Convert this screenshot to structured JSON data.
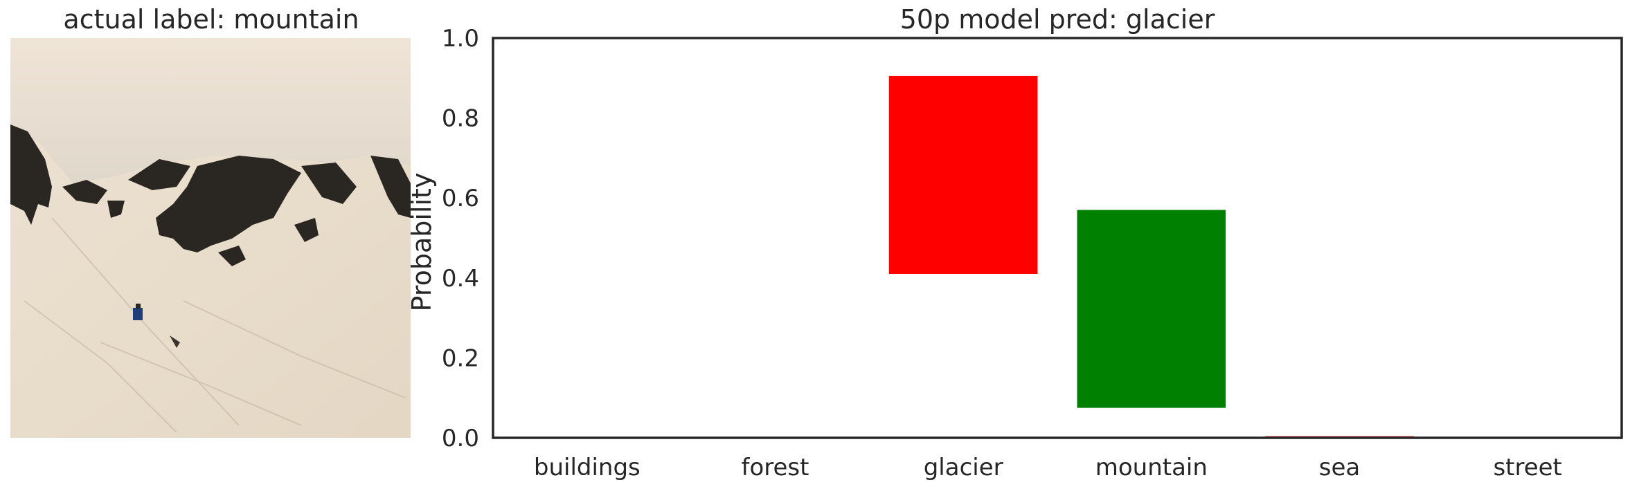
{
  "left_panel": {
    "title": "actual label: mountain"
  },
  "chart_data": {
    "type": "bar",
    "title": "50p model pred: glacier",
    "xlabel": "",
    "ylabel": "Probability",
    "categories": [
      "buildings",
      "forest",
      "glacier",
      "mountain",
      "sea",
      "street"
    ],
    "bar_bottoms": [
      0.0,
      0.0,
      0.41,
      0.075,
      0.0,
      0.0
    ],
    "bar_tops": [
      0.0,
      0.0,
      0.905,
      0.57,
      0.004,
      0.0
    ],
    "bar_colors": [
      "#ff0000",
      "#ff0000",
      "#ff0000",
      "#008000",
      "#ff0000",
      "#ff0000"
    ],
    "ylim": [
      0,
      1.0
    ],
    "yticks": [
      "0.0",
      "0.2",
      "0.4",
      "0.6",
      "0.8",
      "1.0"
    ],
    "grid": false
  }
}
